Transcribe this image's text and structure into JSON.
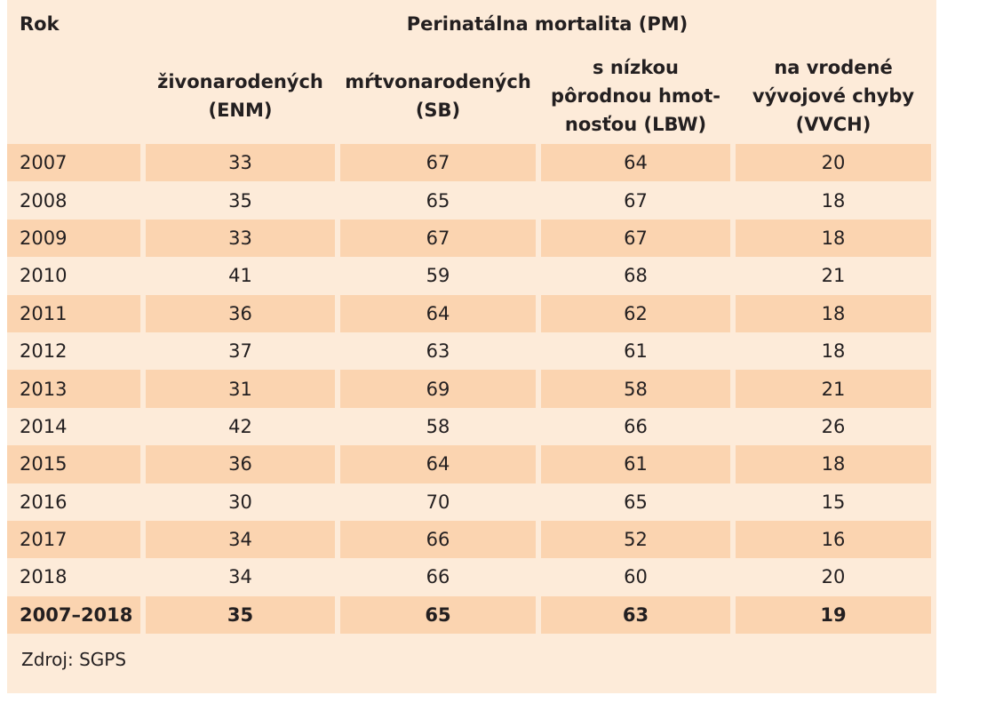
{
  "table": {
    "header": {
      "rok": "Rok",
      "group": "Perinatálna mortalita (PM)",
      "columns": [
        [
          "živonarodených",
          "(ENM)"
        ],
        [
          "mŕtvonarodených",
          "(SB)"
        ],
        [
          "s nízkou",
          "pôrodnou hmot-",
          "nosťou (LBW)"
        ],
        [
          "na vrodené",
          "vývojové chyby",
          "(VVCH)"
        ]
      ]
    },
    "rows": [
      [
        "2007",
        "33",
        "67",
        "64",
        "20"
      ],
      [
        "2008",
        "35",
        "65",
        "67",
        "18"
      ],
      [
        "2009",
        "33",
        "67",
        "67",
        "18"
      ],
      [
        "2010",
        "41",
        "59",
        "68",
        "21"
      ],
      [
        "2011",
        "36",
        "64",
        "62",
        "18"
      ],
      [
        "2012",
        "37",
        "63",
        "61",
        "18"
      ],
      [
        "2013",
        "31",
        "69",
        "58",
        "21"
      ],
      [
        "2014",
        "42",
        "58",
        "66",
        "26"
      ],
      [
        "2015",
        "36",
        "64",
        "61",
        "18"
      ],
      [
        "2016",
        "30",
        "70",
        "65",
        "15"
      ],
      [
        "2017",
        "34",
        "66",
        "52",
        "16"
      ],
      [
        "2018",
        "34",
        "66",
        "60",
        "20"
      ]
    ],
    "total": [
      "2007–2018",
      "35",
      "65",
      "63",
      "19"
    ]
  },
  "source": "Zdroj: SGPS",
  "colors": {
    "panel_background": "#fdebd9",
    "stripe": "#fbd4b0",
    "text": "#231f20"
  }
}
